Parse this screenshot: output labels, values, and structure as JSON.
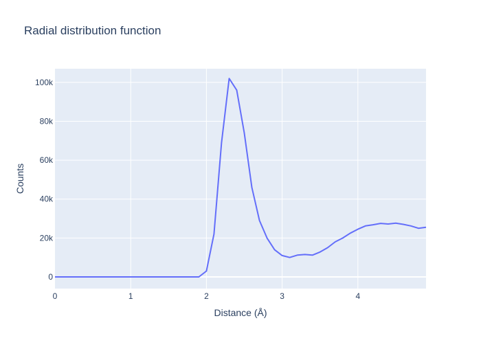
{
  "chart_data": {
    "type": "line",
    "title": "Radial distribution function",
    "xlabel": "Distance (Å)",
    "ylabel": "Counts",
    "xlim": [
      0,
      4.9
    ],
    "ylim": [
      -6000,
      107000
    ],
    "grid": true,
    "x_ticks": [
      {
        "value": 0,
        "label": "0"
      },
      {
        "value": 1,
        "label": "1"
      },
      {
        "value": 2,
        "label": "2"
      },
      {
        "value": 3,
        "label": "3"
      },
      {
        "value": 4,
        "label": "4"
      }
    ],
    "y_ticks": [
      {
        "value": 0,
        "label": "0"
      },
      {
        "value": 20000,
        "label": "20k"
      },
      {
        "value": 40000,
        "label": "40k"
      },
      {
        "value": 60000,
        "label": "60k"
      },
      {
        "value": 80000,
        "label": "80k"
      },
      {
        "value": 100000,
        "label": "100k"
      }
    ],
    "series": [
      {
        "color": "#636efa",
        "x": [
          0,
          0.1,
          0.2,
          0.3,
          0.4,
          0.5,
          0.6,
          0.7,
          0.8,
          0.9,
          1.0,
          1.1,
          1.2,
          1.3,
          1.4,
          1.5,
          1.6,
          1.7,
          1.8,
          1.9,
          2.0,
          2.1,
          2.2,
          2.3,
          2.4,
          2.5,
          2.6,
          2.7,
          2.8,
          2.9,
          3.0,
          3.1,
          3.2,
          3.3,
          3.4,
          3.5,
          3.6,
          3.7,
          3.8,
          3.9,
          4.0,
          4.1,
          4.2,
          4.3,
          4.4,
          4.5,
          4.6,
          4.7,
          4.8,
          4.9
        ],
        "y": [
          0,
          0,
          0,
          0,
          0,
          0,
          0,
          0,
          0,
          0,
          0,
          0,
          0,
          0,
          0,
          0,
          0,
          0,
          0,
          0,
          3000,
          22000,
          69000,
          102000,
          96000,
          74000,
          46000,
          29000,
          20000,
          14000,
          11000,
          10000,
          11200,
          11500,
          11200,
          12800,
          15000,
          18000,
          20000,
          22500,
          24500,
          26200,
          26800,
          27500,
          27200,
          27600,
          27000,
          26200,
          25000,
          25500
        ]
      }
    ]
  }
}
